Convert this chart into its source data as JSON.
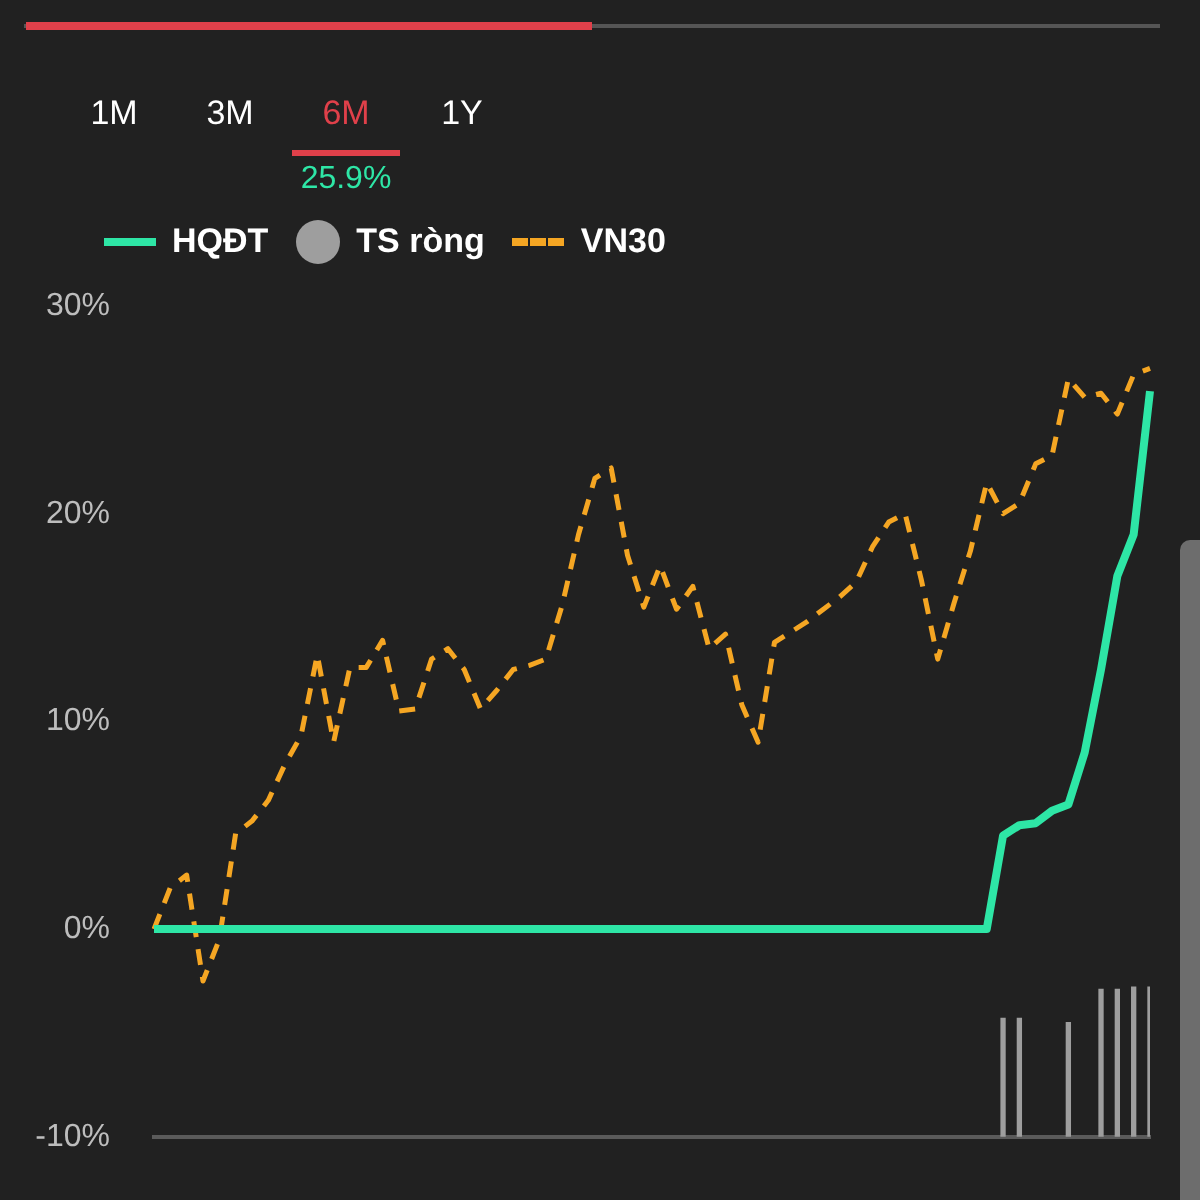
{
  "chart_data": {
    "type": "line",
    "annotations": [
      "1M",
      "3M",
      "6M",
      "1Y",
      "25.9%"
    ],
    "legend": "top left",
    "marker": "none",
    "grid": false,
    "categories": [
      null,
      null,
      null,
      null,
      null,
      null,
      null,
      null,
      null,
      null,
      null,
      null,
      null,
      null,
      null,
      null,
      null,
      null,
      null,
      null,
      null,
      null,
      null,
      null,
      null,
      null,
      null,
      null,
      null,
      null,
      null,
      null,
      null,
      null,
      null,
      null,
      null,
      null,
      null,
      null,
      null,
      null,
      null,
      null,
      null,
      null,
      null,
      null,
      null,
      null,
      null,
      null,
      null,
      null,
      null,
      null,
      null,
      null,
      null,
      null,
      null,
      null
    ],
    "ylim": [
      -10,
      30
    ],
    "yticks": [
      {
        "value": -10,
        "label": "-10%"
      },
      {
        "value": 0,
        "label": "0%"
      },
      {
        "value": 10,
        "label": "10%"
      },
      {
        "value": 20,
        "label": "20%"
      },
      {
        "value": 30,
        "label": "30%"
      }
    ],
    "series": [
      {
        "name": "HQĐT",
        "color": "#2ee6a6",
        "line_style": "solid",
        "values": [
          0,
          0,
          0,
          0,
          0,
          0,
          0,
          0,
          0,
          0,
          0,
          0,
          0,
          0,
          0,
          0,
          0,
          0,
          0,
          0,
          0,
          0,
          0,
          0,
          0,
          0,
          0,
          0,
          0,
          0,
          0,
          0,
          0,
          0,
          0,
          0,
          0,
          0,
          0,
          0,
          0,
          0,
          0,
          0,
          0,
          0,
          0,
          0,
          0,
          0,
          0,
          0,
          4.5,
          5,
          5.1,
          5.7,
          6,
          8.5,
          12.5,
          17,
          19,
          25.9
        ]
      },
      {
        "name": "TS ròng",
        "type": "bar",
        "color": "#9e9e9e",
        "base": [
          null,
          null,
          null,
          null,
          null,
          null,
          null,
          null,
          null,
          null,
          null,
          null,
          null,
          null,
          null,
          null,
          null,
          null,
          null,
          null,
          null,
          null,
          null,
          null,
          null,
          null,
          null,
          null,
          null,
          null,
          null,
          null,
          null,
          null,
          null,
          null,
          null,
          null,
          null,
          null,
          null,
          null,
          null,
          null,
          null,
          null,
          null,
          null,
          null,
          null,
          null,
          null,
          -10,
          -10,
          null,
          null,
          -10,
          null,
          -10,
          -10,
          -10,
          -10
        ],
        "values": [
          null,
          null,
          null,
          null,
          null,
          null,
          null,
          null,
          null,
          null,
          null,
          null,
          null,
          null,
          null,
          null,
          null,
          null,
          null,
          null,
          null,
          null,
          null,
          null,
          null,
          null,
          null,
          null,
          null,
          null,
          null,
          null,
          null,
          null,
          null,
          null,
          null,
          null,
          null,
          null,
          null,
          null,
          null,
          null,
          null,
          null,
          null,
          null,
          null,
          null,
          null,
          null,
          5.7,
          5.7,
          null,
          null,
          5.5,
          null,
          7.1,
          7.1,
          7.2,
          7.2
        ]
      },
      {
        "name": "VN30",
        "color": "#f5a623",
        "line_style": "dashed",
        "values": [
          0,
          2,
          2.6,
          -2.5,
          -0.5,
          4.6,
          5.2,
          6.2,
          7.9,
          9.3,
          13.2,
          9,
          12.6,
          12.6,
          13.9,
          10.5,
          10.6,
          13,
          13.5,
          12.5,
          10.6,
          11.5,
          12.5,
          12.7,
          13,
          15.6,
          19,
          21.7,
          22.2,
          18,
          15.5,
          17.5,
          15.4,
          16.5,
          13.5,
          14.2,
          10.8,
          9,
          13.8,
          14.3,
          14.8,
          15.4,
          16,
          16.7,
          18.4,
          19.6,
          20,
          16.8,
          13,
          15.7,
          18.2,
          21.5,
          20,
          20.5,
          22.4,
          22.8,
          26.5,
          25.6,
          25.8,
          24.8,
          26.7,
          27
        ]
      }
    ]
  }
}
